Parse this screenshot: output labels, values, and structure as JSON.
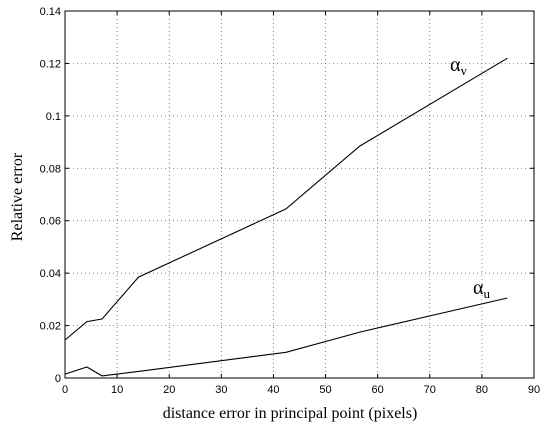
{
  "chart_data": {
    "type": "line",
    "title": "",
    "xlabel": "distance error in principal point (pixels)",
    "ylabel": "Relative error",
    "xlim": [
      0,
      90
    ],
    "ylim": [
      0,
      0.14
    ],
    "grid": true,
    "x_ticks": [
      "0",
      "10",
      "20",
      "30",
      "40",
      "50",
      "60",
      "70",
      "80",
      "90"
    ],
    "y_ticks": [
      "0",
      "0.02",
      "0.04",
      "0.06",
      "0.08",
      "0.1",
      "0.12",
      "0.14"
    ],
    "series": [
      {
        "name": "α",
        "subscript": "v",
        "x": [
          0,
          4.2,
          7.1,
          14.1,
          42.4,
          56.6,
          84.9
        ],
        "y": [
          0.0145,
          0.0215,
          0.0225,
          0.0385,
          0.0645,
          0.0885,
          0.122
        ]
      },
      {
        "name": "α",
        "subscript": "u",
        "x": [
          0,
          4.2,
          7.1,
          14.1,
          42.4,
          56.6,
          84.9
        ],
        "y": [
          0.0015,
          0.0042,
          0.0008,
          0.0025,
          0.0098,
          0.0175,
          0.0305
        ]
      }
    ]
  }
}
